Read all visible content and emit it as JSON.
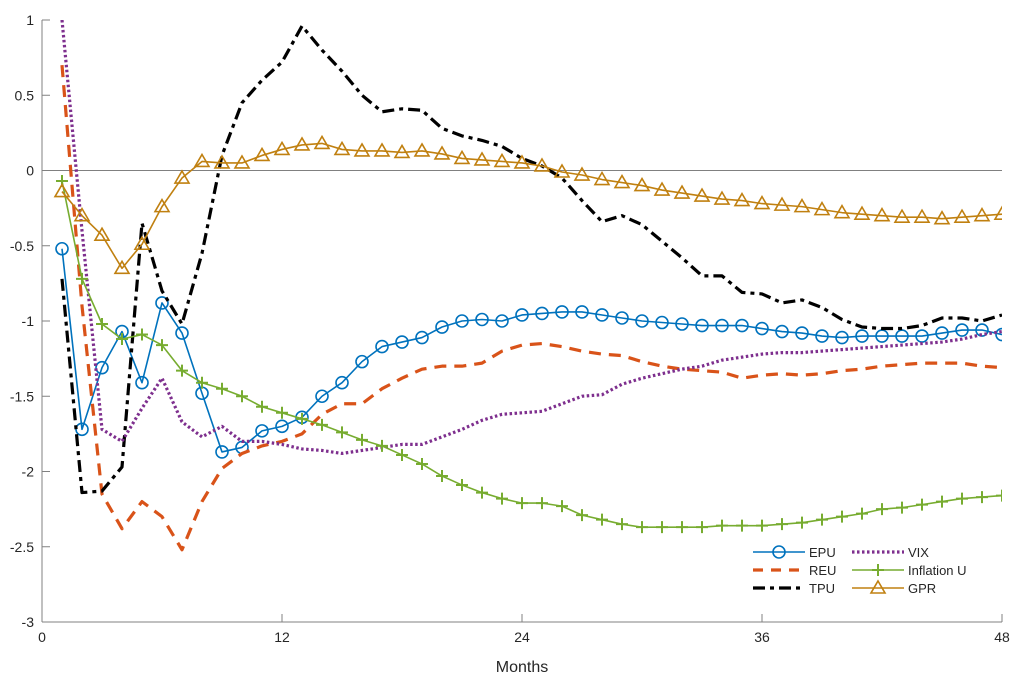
{
  "chart_data": {
    "type": "line",
    "title": "",
    "xlabel": "Months",
    "ylabel": "",
    "xlim": [
      0,
      48
    ],
    "ylim": [
      -3,
      1
    ],
    "xticks": [
      0,
      12,
      24,
      36,
      48
    ],
    "yticks": [
      -3,
      -2.5,
      -2,
      -1.5,
      -1,
      -0.5,
      0,
      0.5,
      1
    ],
    "grid": false,
    "zero_line": true,
    "legend_placement": "bottom-right",
    "x": [
      1,
      2,
      3,
      4,
      5,
      6,
      7,
      8,
      9,
      10,
      11,
      12,
      13,
      14,
      15,
      16,
      17,
      18,
      19,
      20,
      21,
      22,
      23,
      24,
      25,
      26,
      27,
      28,
      29,
      30,
      31,
      32,
      33,
      34,
      35,
      36,
      37,
      38,
      39,
      40,
      41,
      42,
      43,
      44,
      45,
      46,
      47,
      48
    ],
    "series": [
      {
        "name": "EPU",
        "color": "#0072BD",
        "style": "solid",
        "marker": "circle",
        "values": [
          -0.52,
          -1.72,
          -1.31,
          -1.07,
          -1.41,
          -0.88,
          -1.08,
          -1.48,
          -1.87,
          -1.84,
          -1.73,
          -1.7,
          -1.64,
          -1.5,
          -1.41,
          -1.27,
          -1.17,
          -1.14,
          -1.11,
          -1.04,
          -1.0,
          -0.99,
          -1.0,
          -0.96,
          -0.95,
          -0.94,
          -0.94,
          -0.96,
          -0.98,
          -1.0,
          -1.01,
          -1.02,
          -1.03,
          -1.03,
          -1.03,
          -1.05,
          -1.07,
          -1.08,
          -1.1,
          -1.11,
          -1.1,
          -1.1,
          -1.1,
          -1.1,
          -1.08,
          -1.06,
          -1.06,
          -1.09
        ]
      },
      {
        "name": "REU",
        "color": "#D95319",
        "style": "dashed",
        "marker": "none",
        "values": [
          0.7,
          -0.9,
          -2.15,
          -2.38,
          -2.2,
          -2.3,
          -2.52,
          -2.2,
          -1.98,
          -1.88,
          -1.83,
          -1.8,
          -1.75,
          -1.62,
          -1.55,
          -1.55,
          -1.45,
          -1.38,
          -1.32,
          -1.3,
          -1.3,
          -1.28,
          -1.2,
          -1.16,
          -1.15,
          -1.17,
          -1.2,
          -1.22,
          -1.23,
          -1.27,
          -1.3,
          -1.32,
          -1.33,
          -1.34,
          -1.38,
          -1.36,
          -1.35,
          -1.36,
          -1.35,
          -1.33,
          -1.32,
          -1.3,
          -1.29,
          -1.28,
          -1.28,
          -1.28,
          -1.3,
          -1.31
        ]
      },
      {
        "name": "TPU",
        "color": "#000000",
        "style": "dashdot",
        "marker": "none",
        "values": [
          -0.72,
          -2.14,
          -2.13,
          -1.97,
          -0.35,
          -0.8,
          -1.02,
          -0.55,
          0.1,
          0.45,
          0.6,
          0.72,
          0.96,
          0.8,
          0.66,
          0.5,
          0.39,
          0.41,
          0.4,
          0.28,
          0.23,
          0.2,
          0.16,
          0.08,
          0.03,
          -0.05,
          -0.2,
          -0.34,
          -0.3,
          -0.36,
          -0.47,
          -0.58,
          -0.7,
          -0.7,
          -0.81,
          -0.82,
          -0.88,
          -0.86,
          -0.91,
          -0.99,
          -1.04,
          -1.05,
          -1.05,
          -1.03,
          -0.98,
          -0.98,
          -1.0,
          -0.96
        ]
      },
      {
        "name": "VIX",
        "color": "#7E2F8E",
        "style": "dotted",
        "marker": "none",
        "values": [
          1.0,
          -0.4,
          -1.72,
          -1.8,
          -1.58,
          -1.38,
          -1.67,
          -1.77,
          -1.7,
          -1.8,
          -1.8,
          -1.82,
          -1.85,
          -1.86,
          -1.88,
          -1.86,
          -1.84,
          -1.82,
          -1.82,
          -1.77,
          -1.72,
          -1.66,
          -1.62,
          -1.61,
          -1.6,
          -1.55,
          -1.5,
          -1.49,
          -1.42,
          -1.38,
          -1.35,
          -1.32,
          -1.3,
          -1.26,
          -1.24,
          -1.22,
          -1.21,
          -1.21,
          -1.2,
          -1.19,
          -1.18,
          -1.17,
          -1.16,
          -1.15,
          -1.14,
          -1.12,
          -1.09,
          -1.07
        ]
      },
      {
        "name": "Inflation U",
        "color": "#77AC30",
        "style": "solid",
        "marker": "plus",
        "values": [
          -0.07,
          -0.72,
          -1.02,
          -1.12,
          -1.09,
          -1.16,
          -1.33,
          -1.41,
          -1.45,
          -1.5,
          -1.57,
          -1.61,
          -1.65,
          -1.69,
          -1.74,
          -1.79,
          -1.83,
          -1.89,
          -1.95,
          -2.03,
          -2.09,
          -2.14,
          -2.18,
          -2.21,
          -2.21,
          -2.23,
          -2.29,
          -2.32,
          -2.35,
          -2.37,
          -2.37,
          -2.37,
          -2.37,
          -2.36,
          -2.36,
          -2.36,
          -2.35,
          -2.34,
          -2.32,
          -2.3,
          -2.28,
          -2.25,
          -2.24,
          -2.22,
          -2.2,
          -2.18,
          -2.17,
          -2.16
        ]
      },
      {
        "name": "GPR",
        "color": "#C08010",
        "style": "solid",
        "marker": "triangle",
        "values": [
          -0.14,
          -0.3,
          -0.43,
          -0.65,
          -0.49,
          -0.24,
          -0.05,
          0.06,
          0.05,
          0.05,
          0.1,
          0.14,
          0.17,
          0.18,
          0.14,
          0.13,
          0.13,
          0.12,
          0.13,
          0.11,
          0.08,
          0.07,
          0.06,
          0.05,
          0.03,
          -0.01,
          -0.03,
          -0.06,
          -0.08,
          -0.1,
          -0.13,
          -0.15,
          -0.17,
          -0.19,
          -0.2,
          -0.22,
          -0.23,
          -0.24,
          -0.26,
          -0.28,
          -0.29,
          -0.3,
          -0.31,
          -0.31,
          -0.32,
          -0.31,
          -0.3,
          -0.29
        ]
      }
    ]
  }
}
